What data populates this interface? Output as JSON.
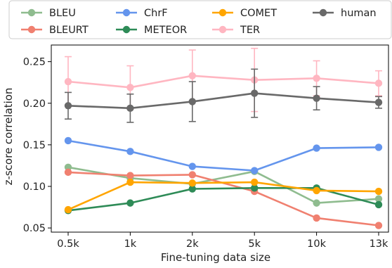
{
  "chart_data": {
    "type": "line",
    "title": "",
    "xlabel": "Fine-tuning data size",
    "ylabel": "z-score correlation",
    "categories": [
      "0.5k",
      "1k",
      "2k",
      "5k",
      "10k",
      "13k"
    ],
    "ylim": [
      0.045,
      0.27
    ],
    "yticks": [
      "0.05",
      "0.10",
      "0.15",
      "0.20",
      "0.25"
    ],
    "ytick_values": [
      0.05,
      0.1,
      0.15,
      0.2,
      0.25
    ],
    "grid": false,
    "legend_position": "top",
    "series": [
      {
        "name": "BLEU",
        "color": "#8fbc8f",
        "values": [
          0.123,
          0.11,
          0.103,
          0.118,
          0.08,
          0.085
        ],
        "error": null
      },
      {
        "name": "BLEURT",
        "color": "#f08070",
        "values": [
          0.117,
          0.113,
          0.114,
          0.094,
          0.062,
          0.053
        ],
        "error": null
      },
      {
        "name": "ChrF",
        "color": "#6495ed",
        "values": [
          0.155,
          0.142,
          0.124,
          0.119,
          0.146,
          0.147
        ],
        "error": null
      },
      {
        "name": "METEOR",
        "color": "#2e8b57",
        "values": [
          0.071,
          0.08,
          0.097,
          0.098,
          0.098,
          0.078
        ],
        "error": null
      },
      {
        "name": "COMET",
        "color": "#ffa500",
        "values": [
          0.072,
          0.105,
          0.104,
          0.105,
          0.095,
          0.094
        ],
        "error": null
      },
      {
        "name": "TER",
        "color": "#ffb6c1",
        "values": [
          0.226,
          0.219,
          0.233,
          0.228,
          0.23,
          0.224
        ],
        "error": [
          0.03,
          0.026,
          0.031,
          0.038,
          0.021,
          0.015
        ]
      },
      {
        "name": "human",
        "color": "#696969",
        "values": [
          0.197,
          0.194,
          0.202,
          0.212,
          0.206,
          0.201
        ],
        "error": [
          0.016,
          0.017,
          0.024,
          0.029,
          0.014,
          0.007
        ]
      }
    ]
  }
}
